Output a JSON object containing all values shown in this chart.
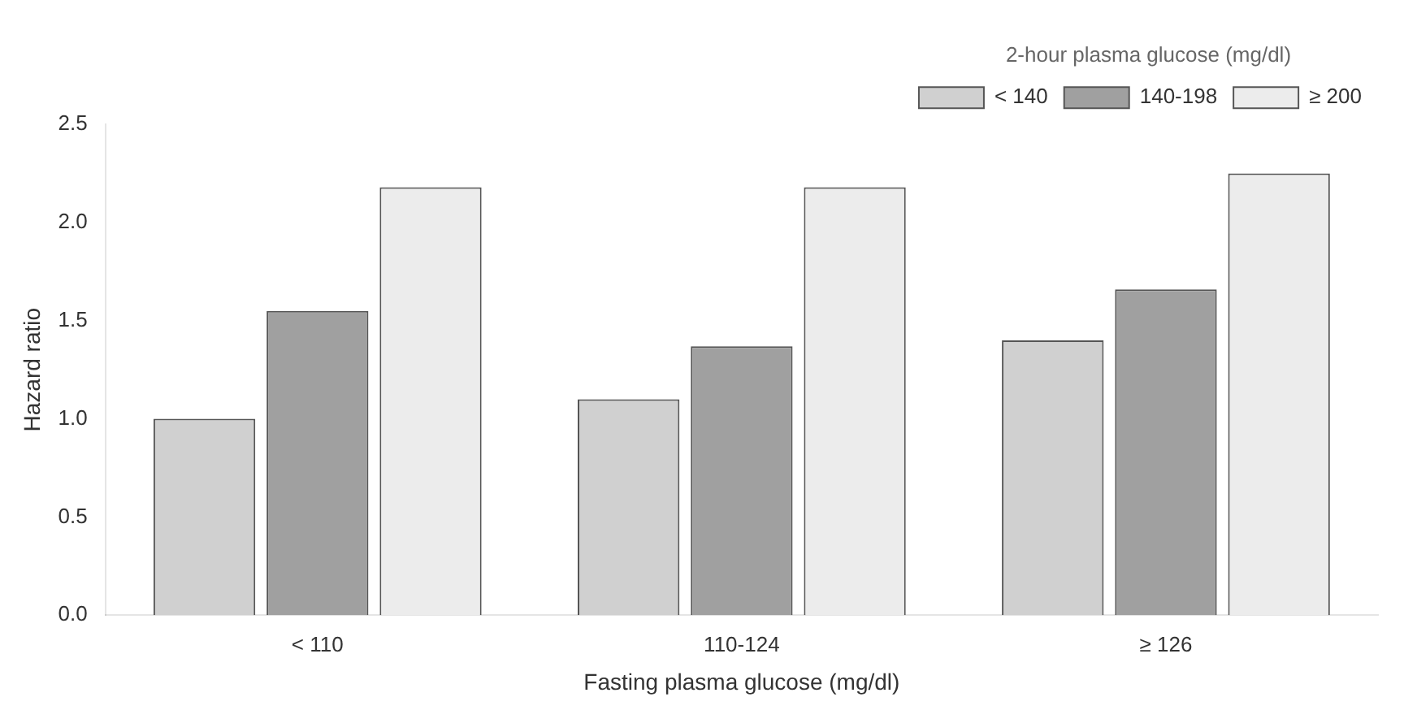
{
  "chart_data": {
    "type": "bar",
    "xlabel": "Fasting plasma glucose (mg/dl)",
    "ylabel": "Hazard ratio",
    "legend_title": "2-hour plasma glucose (mg/dl)",
    "categories": [
      "< 110",
      "110-124",
      "≥ 126"
    ],
    "series": [
      {
        "name": "< 140",
        "color": "#d0d0d0",
        "values": [
          1.0,
          1.1,
          1.4
        ]
      },
      {
        "name": "140-198",
        "color": "#a0a0a0",
        "values": [
          1.55,
          1.37,
          1.66
        ]
      },
      {
        "name": "≥ 200",
        "color": "#ececec",
        "values": [
          2.18,
          2.18,
          2.25
        ]
      }
    ],
    "ylim": [
      0,
      2.5
    ],
    "yticks": [
      {
        "value": 0,
        "label": "0.0"
      },
      0.5,
      {
        "value": 1,
        "label": "1.0"
      },
      1.5,
      {
        "value": 2,
        "label": "2.0"
      },
      2.5
    ],
    "grid": false,
    "legend": "top right"
  }
}
